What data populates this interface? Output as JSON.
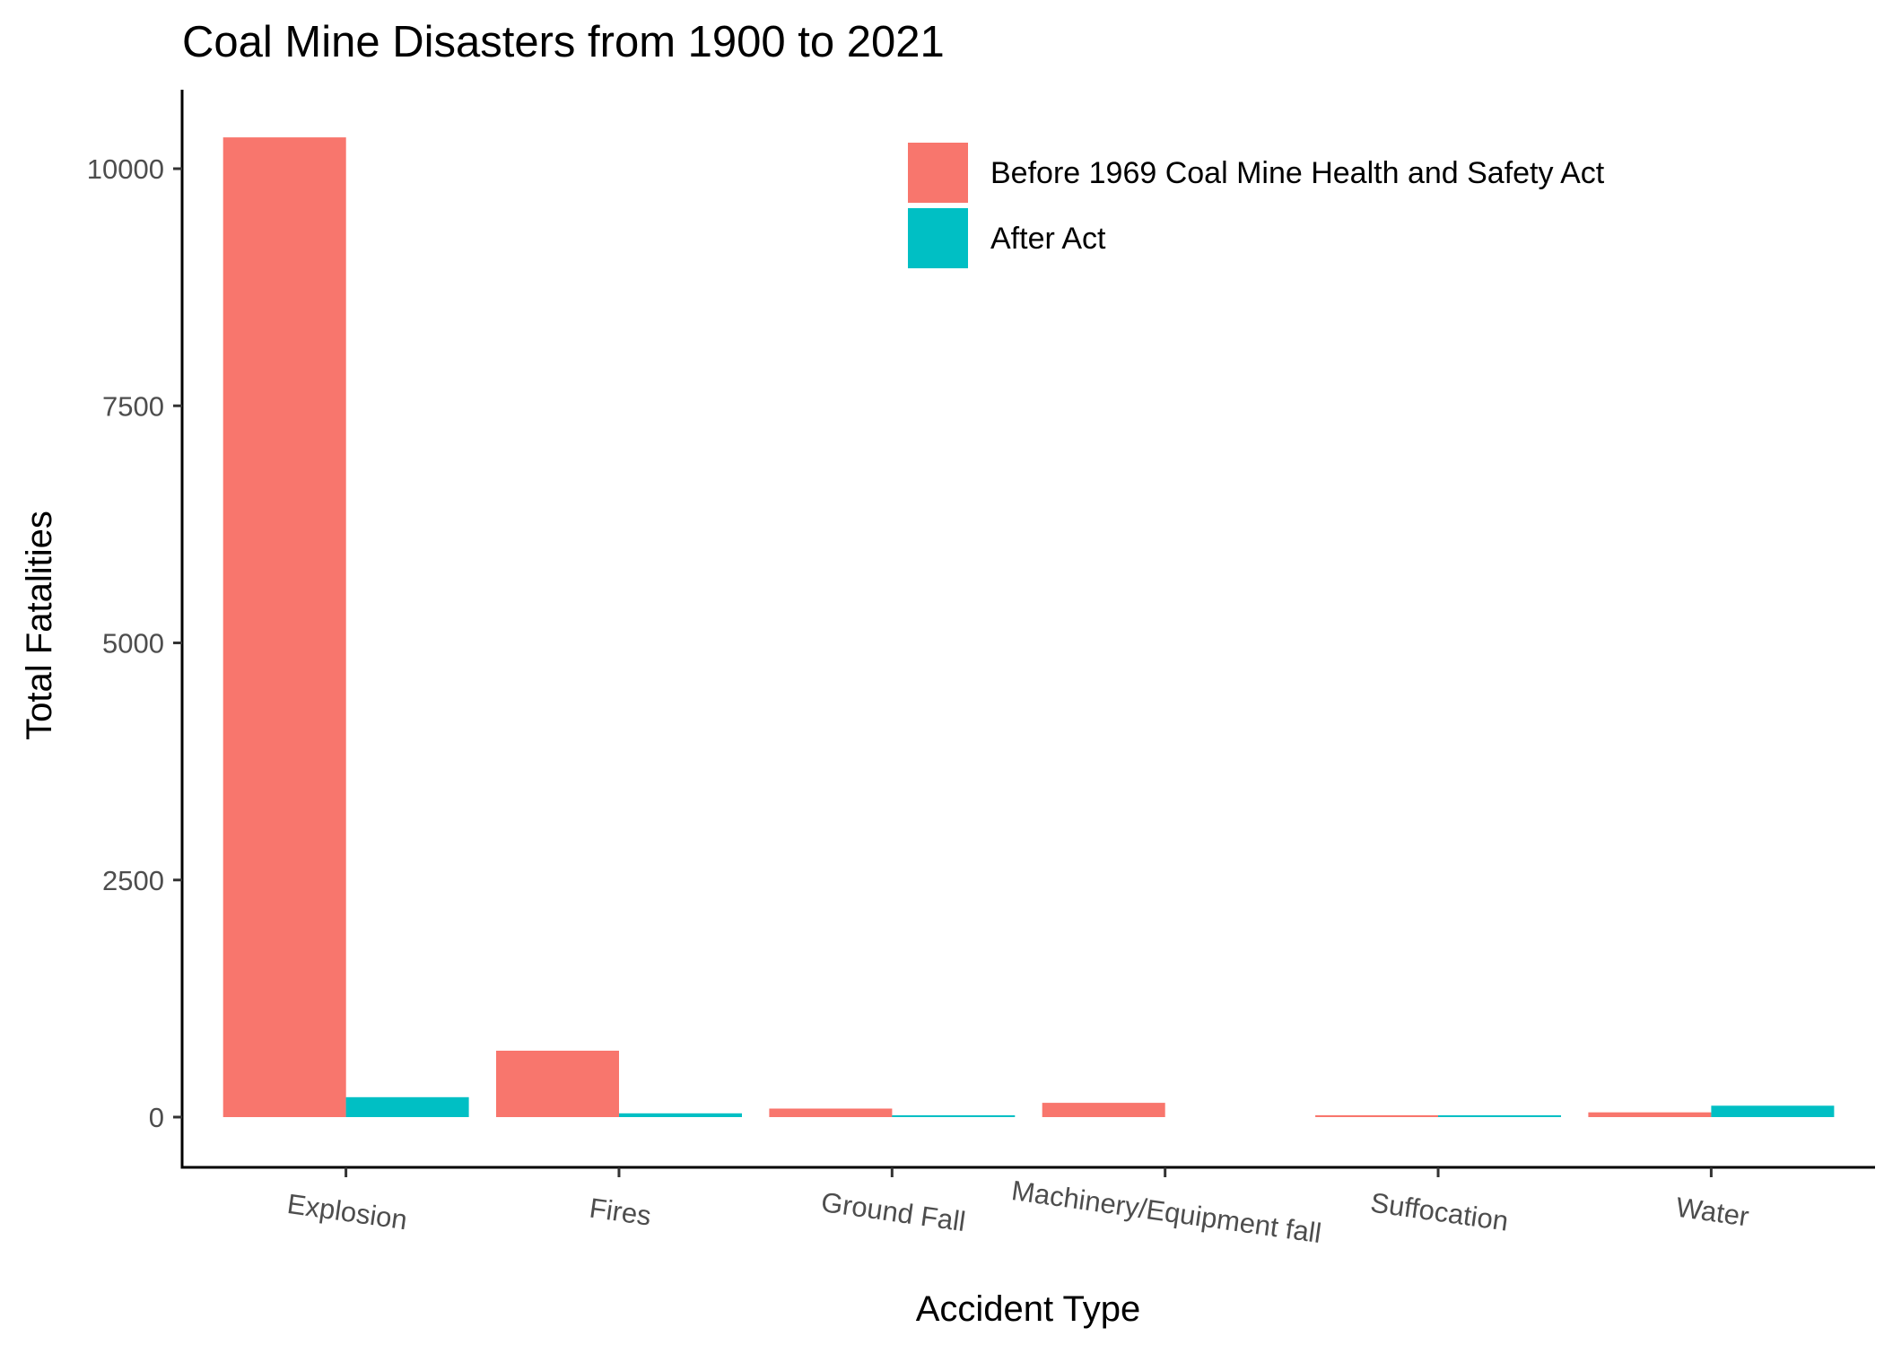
{
  "chart_data": {
    "type": "bar",
    "title": "Coal Mine Disasters from 1900 to 2021",
    "xlabel": "Accident Type",
    "ylabel": "Total Fatalities",
    "categories": [
      "Explosion",
      "Fires",
      "Ground Fall",
      "Machinery/Equipment fall",
      "Suffocation",
      "Water"
    ],
    "series": [
      {
        "name": "Before 1969 Coal Mine Health and Safety Act",
        "color": "#F8766D",
        "values": [
          10330,
          700,
          90,
          150,
          20,
          50
        ]
      },
      {
        "name": "After Act",
        "color": "#00BFC4",
        "values": [
          210,
          40,
          10,
          0,
          10,
          120
        ]
      }
    ],
    "ylim": [
      -500,
      10800
    ],
    "yticks": [
      0,
      2500,
      5000,
      7500,
      10000
    ],
    "grid": false,
    "legend_position": "top-right (inside plot)"
  }
}
